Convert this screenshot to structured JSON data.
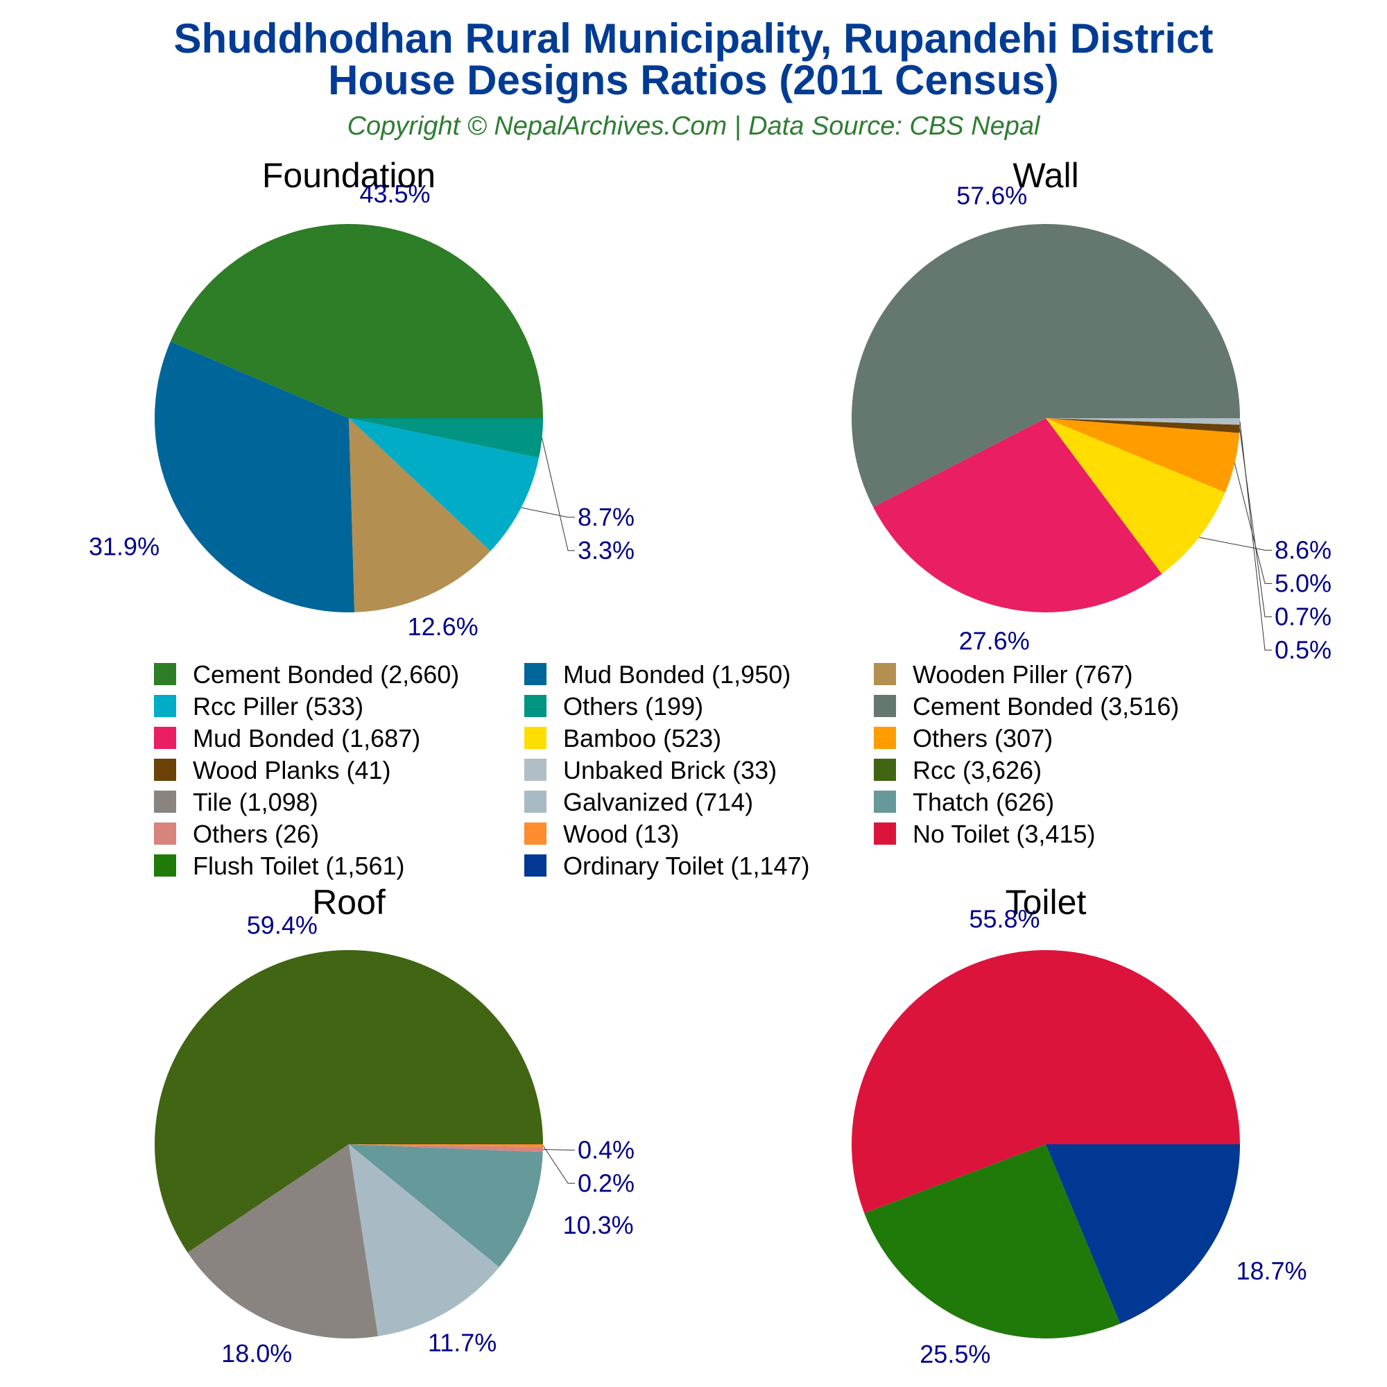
{
  "title": {
    "line1": "Shuddhodhan Rural Municipality, Rupandehi District",
    "line2": "House Designs Ratios (2011 Census)",
    "subtitle": "Copyright © NepalArchives.Com | Data Source: CBS Nepal"
  },
  "chart_data": [
    {
      "type": "pie",
      "title": "Foundation",
      "slices": [
        {
          "label": "Cement Bonded",
          "value": 2660,
          "percent_label": "43.5%",
          "color": "#2e7d27"
        },
        {
          "label": "Mud Bonded",
          "value": 1950,
          "percent_label": "31.9%",
          "color": "#006699"
        },
        {
          "label": "Wooden Piller",
          "value": 767,
          "percent_label": "12.6%",
          "color": "#b38f52"
        },
        {
          "label": "Rcc Piller",
          "value": 533,
          "percent_label": "8.7%",
          "color": "#00acc6"
        },
        {
          "label": "Others",
          "value": 199,
          "percent_label": "3.3%",
          "color": "#009482"
        }
      ]
    },
    {
      "type": "pie",
      "title": "Wall",
      "slices": [
        {
          "label": "Cement Bonded",
          "value": 3516,
          "percent_label": "57.6%",
          "color": "#647870"
        },
        {
          "label": "Mud Bonded",
          "value": 1687,
          "percent_label": "27.6%",
          "color": "#e91e63"
        },
        {
          "label": "Bamboo",
          "value": 523,
          "percent_label": "8.6%",
          "color": "#ffdd00"
        },
        {
          "label": "Others",
          "value": 307,
          "percent_label": "5.0%",
          "color": "#ff9c00"
        },
        {
          "label": "Wood Planks",
          "value": 41,
          "percent_label": "0.7%",
          "color": "#6b4208"
        },
        {
          "label": "Unbaked Brick",
          "value": 33,
          "percent_label": "0.5%",
          "color": "#b0bec5"
        }
      ]
    },
    {
      "type": "pie",
      "title": "Roof",
      "slices": [
        {
          "label": "Rcc",
          "value": 3626,
          "percent_label": "59.4%",
          "color": "#416513"
        },
        {
          "label": "Tile",
          "value": 1098,
          "percent_label": "18.0%",
          "color": "#8a8480"
        },
        {
          "label": "Galvanized",
          "value": 714,
          "percent_label": "11.7%",
          "color": "#a8bbc4"
        },
        {
          "label": "Thatch",
          "value": 626,
          "percent_label": "10.3%",
          "color": "#669999"
        },
        {
          "label": "Others",
          "value": 26,
          "percent_label": "0.4%",
          "color": "#d9837d"
        },
        {
          "label": "Wood",
          "value": 13,
          "percent_label": "0.2%",
          "color": "#ff8c2e"
        }
      ]
    },
    {
      "type": "pie",
      "title": "Toilet",
      "slices": [
        {
          "label": "No Toilet",
          "value": 3415,
          "percent_label": "55.8%",
          "color": "#dc143c"
        },
        {
          "label": "Flush Toilet",
          "value": 1561,
          "percent_label": "25.5%",
          "color": "#1f7a0a"
        },
        {
          "label": "Ordinary Toilet",
          "value": 1147,
          "percent_label": "18.7%",
          "color": "#003893"
        }
      ]
    }
  ],
  "legend": {
    "placement": "center",
    "columns": 3,
    "items": [
      {
        "text": "Cement Bonded (2,660)",
        "color": "#2e7d27"
      },
      {
        "text": "Mud Bonded (1,950)",
        "color": "#006699"
      },
      {
        "text": "Wooden Piller (767)",
        "color": "#b38f52"
      },
      {
        "text": "Rcc Piller (533)",
        "color": "#00acc6"
      },
      {
        "text": "Others (199)",
        "color": "#009482"
      },
      {
        "text": "Cement Bonded (3,516)",
        "color": "#647870"
      },
      {
        "text": "Mud Bonded (1,687)",
        "color": "#e91e63"
      },
      {
        "text": "Bamboo (523)",
        "color": "#ffdd00"
      },
      {
        "text": "Others (307)",
        "color": "#ff9c00"
      },
      {
        "text": "Wood Planks (41)",
        "color": "#6b4208"
      },
      {
        "text": "Unbaked Brick (33)",
        "color": "#b0bec5"
      },
      {
        "text": "Rcc (3,626)",
        "color": "#416513"
      },
      {
        "text": "Tile (1,098)",
        "color": "#8a8480"
      },
      {
        "text": "Galvanized (714)",
        "color": "#a8bbc4"
      },
      {
        "text": "Thatch (626)",
        "color": "#669999"
      },
      {
        "text": "Others (26)",
        "color": "#d9837d"
      },
      {
        "text": "Wood (13)",
        "color": "#ff8c2e"
      },
      {
        "text": "No Toilet (3,415)",
        "color": "#dc143c"
      },
      {
        "text": "Flush Toilet (1,561)",
        "color": "#1f7a0a"
      },
      {
        "text": "Ordinary Toilet (1,147)",
        "color": "#003893"
      }
    ]
  }
}
